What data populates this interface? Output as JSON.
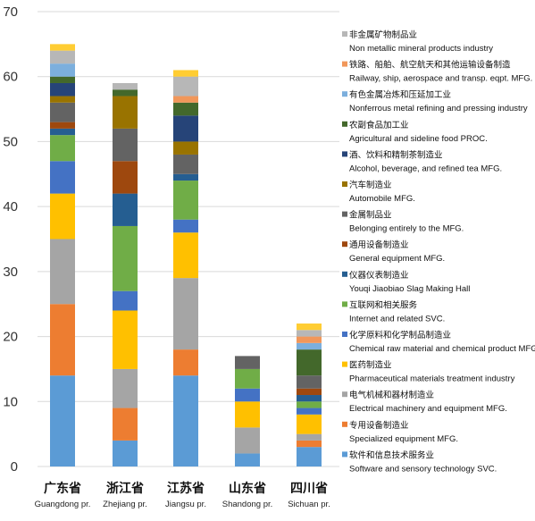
{
  "chart_data": {
    "type": "bar",
    "stacked": true,
    "title": "",
    "xlabel": "",
    "ylabel": "",
    "ylim": [
      0,
      70
    ],
    "yticks": [
      0,
      10,
      20,
      30,
      40,
      50,
      60,
      70
    ],
    "grid": "horizontal",
    "legend_placement": "right",
    "categories": [
      {
        "cn": "广东省",
        "en": "Guangdong pr."
      },
      {
        "cn": "浙江省",
        "en": "Zhejiang pr."
      },
      {
        "cn": "江苏省",
        "en": "Jiangsu pr."
      },
      {
        "cn": "山东省",
        "en": "Shandong pr."
      },
      {
        "cn": "四川省",
        "en": "Sichuan pr."
      }
    ],
    "series": [
      {
        "cn": "软件和信息技术服务业",
        "en": "Software and sensory technology SVC.",
        "color": "#5b9bd5",
        "values": [
          14,
          4,
          14,
          2,
          3
        ]
      },
      {
        "cn": "专用设备制造业",
        "en": "Specialized equipment MFG.",
        "color": "#ed7d31",
        "values": [
          11,
          5,
          4,
          0,
          1
        ]
      },
      {
        "cn": "电气机械和器材制造业",
        "en": "Electrical machinery and equipment MFG.",
        "color": "#a5a5a5",
        "values": [
          10,
          6,
          11,
          4,
          1
        ]
      },
      {
        "cn": "医药制造业",
        "en": "Pharmaceutical materials treatment industry",
        "color": "#ffc000",
        "values": [
          7,
          9,
          7,
          4,
          3
        ]
      },
      {
        "cn": "化学原料和化学制品制造业",
        "en": "Chemical raw material and chemical product MFG.",
        "color": "#4472c4",
        "values": [
          5,
          3,
          2,
          2,
          1
        ]
      },
      {
        "cn": "互联网和相关服务",
        "en": "Internet and related SVC.",
        "color": "#70ad47",
        "values": [
          4,
          10,
          6,
          3,
          1
        ]
      },
      {
        "cn": "仪器仪表制造业",
        "en": "Youqi Jiaobiao Slag Making Hall",
        "color": "#255e91",
        "values": [
          1,
          5,
          1,
          0,
          1
        ]
      },
      {
        "cn": "通用设备制造业",
        "en": "General equipment MFG.",
        "color": "#9e480e",
        "values": [
          1,
          5,
          0,
          0,
          1
        ]
      },
      {
        "cn": "金属制品业",
        "en": "Belonging entirely to the MFG.",
        "color": "#636363",
        "values": [
          3,
          5,
          3,
          2,
          2
        ]
      },
      {
        "cn": "汽车制造业",
        "en": "Automobile MFG.",
        "color": "#997300",
        "values": [
          1,
          5,
          2,
          0,
          0
        ]
      },
      {
        "cn": "酒、饮料和精制茶制造业",
        "en": "Alcohol, beverage, and refined tea MFG.",
        "color": "#264478",
        "values": [
          2,
          0,
          4,
          0,
          0
        ]
      },
      {
        "cn": "农副食品加工业",
        "en": "Agricultural and sideline food PROC.",
        "color": "#43682b",
        "values": [
          1,
          1,
          2,
          0,
          4
        ]
      },
      {
        "cn": "有色金属冶炼和压延加工业",
        "en": "Nonferrous metal refining and pressing industry",
        "color": "#7cafdd",
        "values": [
          2,
          0,
          0,
          0,
          1
        ]
      },
      {
        "cn": "铁路、船舶、航空航天和其他运输设备制造",
        "en": "Railway, ship, aerospace and transp. eqpt. MFG.",
        "color": "#f1975a",
        "values": [
          0,
          0,
          1,
          0,
          1
        ]
      },
      {
        "cn": "非金属矿物制品业",
        "en": "Non metallic mineral products industry",
        "color": "#b7b7b7",
        "values": [
          2,
          1,
          3,
          0,
          1
        ]
      },
      {
        "cn": "",
        "en": "",
        "color": "#ffcd33",
        "values": [
          1,
          0,
          1,
          0,
          1
        ]
      }
    ]
  }
}
